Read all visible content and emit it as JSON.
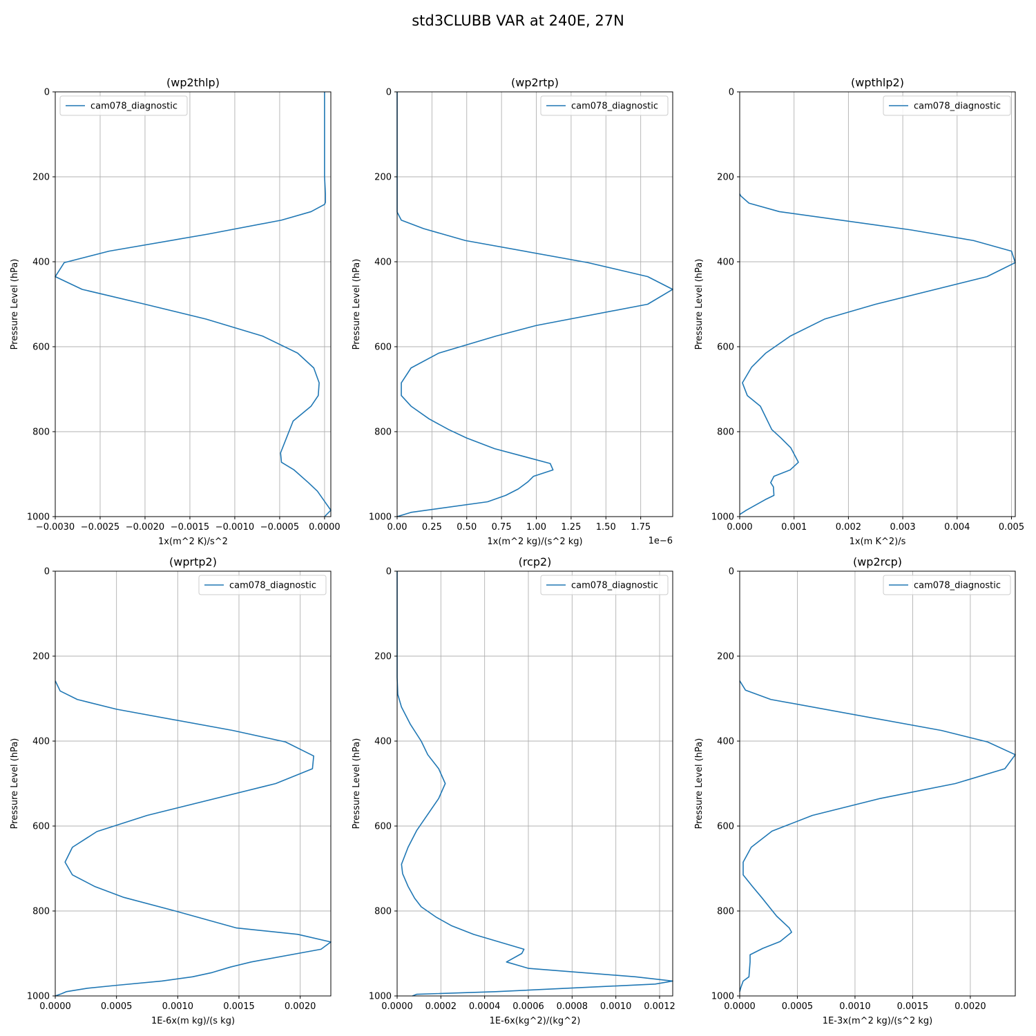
{
  "figure": {
    "title": "std3CLUBB VAR at 240E, 27N"
  },
  "colors": {
    "series": "#1f77b4",
    "grid": "#b0b0b0",
    "axis": "#000000"
  },
  "chart_data": [
    {
      "type": "line",
      "title": "(wp2thlp)",
      "xlabel": "1x(m^2 K)/s^2",
      "ylabel": "Pressure Level (hPa)",
      "xlim": [
        -0.003,
        7e-05
      ],
      "ylim": [
        1000,
        0
      ],
      "y_inverted": true,
      "grid": true,
      "legend": "upper left",
      "offset_text": "",
      "x_ticks": [
        -0.003,
        -0.0025,
        -0.002,
        -0.0015,
        -0.001,
        -0.0005,
        0.0
      ],
      "x_tick_labels": [
        "−0.0030",
        "−0.0025",
        "−0.0020",
        "−0.0015",
        "−0.0010",
        "−0.0005",
        "0.0000"
      ],
      "y_ticks": [
        0,
        200,
        400,
        600,
        800,
        1000
      ],
      "y_tick_labels": [
        "0",
        "200",
        "400",
        "600",
        "800",
        "1000"
      ],
      "series": [
        {
          "name": "cam078_diagnostic",
          "x": [
            0.0,
            0.0,
            0.0,
            0.0,
            1e-05,
            1e-05,
            0.0,
            -0.00015,
            -0.00048,
            -0.0013,
            -0.0024,
            -0.0029,
            -0.003,
            -0.0027,
            -0.002,
            -0.00132,
            -0.00069,
            -0.0003,
            -0.00012,
            -6e-05,
            -7e-05,
            -0.00015,
            -0.00035,
            -0.00049,
            -0.00048,
            -0.00034,
            -0.00018,
            -8e-05,
            2e-05,
            7e-05,
            0.0
          ],
          "y": [
            0,
            100,
            150,
            200,
            240,
            260,
            265,
            282,
            302,
            335,
            375,
            402,
            435,
            465,
            500,
            535,
            575,
            615,
            650,
            685,
            715,
            740,
            775,
            850,
            872,
            890,
            920,
            940,
            970,
            985,
            1000
          ]
        }
      ]
    },
    {
      "type": "line",
      "title": "(wp2rtp)",
      "xlabel": "1x(m^2 kg)/(s^2 kg)",
      "ylabel": "Pressure Level (hPa)",
      "xlim": [
        0,
        1.98
      ],
      "ylim": [
        1000,
        0
      ],
      "y_inverted": true,
      "grid": true,
      "legend": "upper right",
      "offset_text": "1e−6",
      "x_ticks": [
        0.0,
        0.25,
        0.5,
        0.75,
        1.0,
        1.25,
        1.5,
        1.75
      ],
      "x_tick_labels": [
        "0.00",
        "0.25",
        "0.50",
        "0.75",
        "1.00",
        "1.25",
        "1.50",
        "1.75"
      ],
      "y_ticks": [
        0,
        200,
        400,
        600,
        800,
        1000
      ],
      "y_tick_labels": [
        "0",
        "200",
        "400",
        "600",
        "800",
        "1000"
      ],
      "series": [
        {
          "name": "cam078_diagnostic",
          "x": [
            0.0,
            0.0,
            0.0,
            0.0,
            0.03,
            0.19,
            0.49,
            1.37,
            1.8,
            1.98,
            1.8,
            1.0,
            0.71,
            0.3,
            0.1,
            0.03,
            0.03,
            0.1,
            0.23,
            0.37,
            0.5,
            0.7,
            1.1,
            1.12,
            0.98,
            0.94,
            0.87,
            0.78,
            0.65,
            0.1,
            0.0
          ],
          "y": [
            0,
            100,
            200,
            283,
            302,
            322,
            350,
            402,
            435,
            465,
            500,
            550,
            575,
            615,
            650,
            685,
            715,
            740,
            770,
            795,
            815,
            840,
            875,
            890,
            905,
            918,
            935,
            950,
            965,
            990,
            1000
          ]
        }
      ]
    },
    {
      "type": "line",
      "title": "(wpthlp2)",
      "xlabel": "1x(m K^2)/s",
      "ylabel": "Pressure Level (hPa)",
      "xlim": [
        0,
        0.00507
      ],
      "ylim": [
        1000,
        0
      ],
      "y_inverted": true,
      "grid": true,
      "legend": "upper right",
      "offset_text": "",
      "x_ticks": [
        0.0,
        0.001,
        0.002,
        0.003,
        0.004,
        0.005
      ],
      "x_tick_labels": [
        "0.000",
        "0.001",
        "0.002",
        "0.003",
        "0.004",
        "0.005"
      ],
      "y_ticks": [
        0,
        200,
        400,
        600,
        800,
        1000
      ],
      "y_tick_labels": [
        "0",
        "200",
        "400",
        "600",
        "800",
        "1000"
      ],
      "series": [
        {
          "name": "cam078_diagnostic",
          "x": [
            0.0,
            2e-05,
            0.00017,
            0.00073,
            0.00315,
            0.0043,
            0.005,
            0.00507,
            0.00455,
            0.0025,
            0.00156,
            0.00093,
            0.00048,
            0.00022,
            5e-05,
            0.00014,
            0.00038,
            0.00059,
            0.00076,
            0.00094,
            0.00108,
            0.00093,
            0.00063,
            0.00057,
            0.00062,
            0.00063,
            0.00047,
            0.00012,
            0.0
          ],
          "y": [
            240,
            245,
            262,
            282,
            325,
            350,
            375,
            402,
            435,
            500,
            535,
            575,
            615,
            648,
            685,
            715,
            740,
            795,
            815,
            838,
            872,
            890,
            905,
            920,
            930,
            950,
            960,
            985,
            995
          ]
        }
      ]
    },
    {
      "type": "line",
      "title": "(wprtp2)",
      "xlabel": "1E-6x(m kg)/(s kg)",
      "ylabel": "Pressure Level (hPa)",
      "xlim": [
        0,
        0.00225
      ],
      "ylim": [
        1000,
        0
      ],
      "y_inverted": true,
      "grid": true,
      "legend": "upper right",
      "offset_text": "",
      "x_ticks": [
        0.0,
        0.0005,
        0.001,
        0.0015,
        0.002
      ],
      "x_tick_labels": [
        "0.0000",
        "0.0005",
        "0.0010",
        "0.0015",
        "0.0020"
      ],
      "y_ticks": [
        0,
        200,
        400,
        600,
        800,
        1000
      ],
      "y_tick_labels": [
        "0",
        "200",
        "400",
        "600",
        "800",
        "1000"
      ],
      "series": [
        {
          "name": "cam078_diagnostic",
          "x": [
            0.0,
            4e-05,
            0.00018,
            0.0005,
            0.00145,
            0.00188,
            0.00211,
            0.0021,
            0.0018,
            0.00075,
            0.00034,
            0.00014,
            8e-05,
            0.00014,
            0.00032,
            0.00056,
            0.00098,
            0.00148,
            0.00198,
            0.00225,
            0.00217,
            0.0016,
            0.00143,
            0.00128,
            0.00112,
            0.00087,
            0.0005,
            0.00026,
            9e-05,
            5e-05,
            0.0
          ],
          "y": [
            258,
            282,
            302,
            325,
            375,
            402,
            435,
            465,
            500,
            575,
            613,
            650,
            685,
            715,
            742,
            768,
            800,
            840,
            855,
            873,
            890,
            920,
            932,
            945,
            955,
            965,
            975,
            982,
            990,
            995,
            1000
          ]
        }
      ]
    },
    {
      "type": "line",
      "title": "(rcp2)",
      "xlabel": "1E-6x(kg^2)/(kg^2)",
      "ylabel": "Pressure Level (hPa)",
      "xlim": [
        0,
        0.00126
      ],
      "ylim": [
        1000,
        0
      ],
      "y_inverted": true,
      "grid": true,
      "legend": "upper right",
      "offset_text": "",
      "x_ticks": [
        0.0,
        0.0002,
        0.0004,
        0.0006,
        0.0008,
        0.001,
        0.0012
      ],
      "x_tick_labels": [
        "0.0000",
        "0.0002",
        "0.0004",
        "0.0006",
        "0.0008",
        "0.0010",
        "0.0012"
      ],
      "y_ticks": [
        0,
        200,
        400,
        600,
        800,
        1000
      ],
      "y_tick_labels": [
        "0",
        "200",
        "400",
        "600",
        "800",
        "1000"
      ],
      "series": [
        {
          "name": "cam078_diagnostic",
          "x": [
            0.0,
            0.0,
            0.0,
            3e-06,
            2e-05,
            6e-05,
            0.00011,
            0.00014,
            0.00019,
            0.00022,
            0.00019,
            9e-05,
            5e-05,
            2e-05,
            2.5e-05,
            5e-05,
            8e-05,
            0.00011,
            0.00018,
            0.00025,
            0.00035,
            0.00058,
            0.00057,
            0.0005,
            0.0006,
            0.00109,
            0.00126,
            0.00118,
            0.00045,
            9e-05,
            7e-05
          ],
          "y": [
            0,
            150,
            250,
            290,
            320,
            360,
            400,
            432,
            465,
            500,
            535,
            610,
            650,
            690,
            712,
            742,
            770,
            790,
            815,
            835,
            855,
            890,
            900,
            920,
            935,
            955,
            965,
            972,
            990,
            996,
            1000
          ]
        }
      ]
    },
    {
      "type": "line",
      "title": "(wp2rcp)",
      "xlabel": "1E-3x(m^2 kg)/(s^2 kg)",
      "ylabel": "Pressure Level (hPa)",
      "xlim": [
        0,
        0.00239
      ],
      "ylim": [
        1000,
        0
      ],
      "y_inverted": true,
      "grid": true,
      "legend": "upper right",
      "offset_text": "",
      "x_ticks": [
        0.0,
        0.0005,
        0.001,
        0.0015,
        0.002
      ],
      "x_tick_labels": [
        "0.0000",
        "0.0005",
        "0.0010",
        "0.0015",
        "0.0020"
      ],
      "y_ticks": [
        0,
        200,
        400,
        600,
        800,
        1000
      ],
      "y_tick_labels": [
        "0",
        "200",
        "400",
        "600",
        "800",
        "1000"
      ],
      "series": [
        {
          "name": "cam078_diagnostic",
          "x": [
            0.0,
            5e-05,
            0.00027,
            0.00175,
            0.00215,
            0.00239,
            0.0023,
            0.00187,
            0.00122,
            0.00063,
            0.00028,
            0.0001,
            3e-05,
            3e-05,
            0.00011,
            0.00019,
            0.00032,
            0.00043,
            0.00045,
            0.00035,
            0.0002,
            9e-05,
            9e-05,
            8e-05,
            3e-05,
            1e-05,
            0.0
          ],
          "y": [
            258,
            280,
            302,
            375,
            402,
            432,
            465,
            500,
            535,
            575,
            612,
            650,
            685,
            715,
            742,
            768,
            812,
            840,
            850,
            872,
            888,
            903,
            920,
            955,
            965,
            980,
            990
          ]
        }
      ]
    }
  ]
}
